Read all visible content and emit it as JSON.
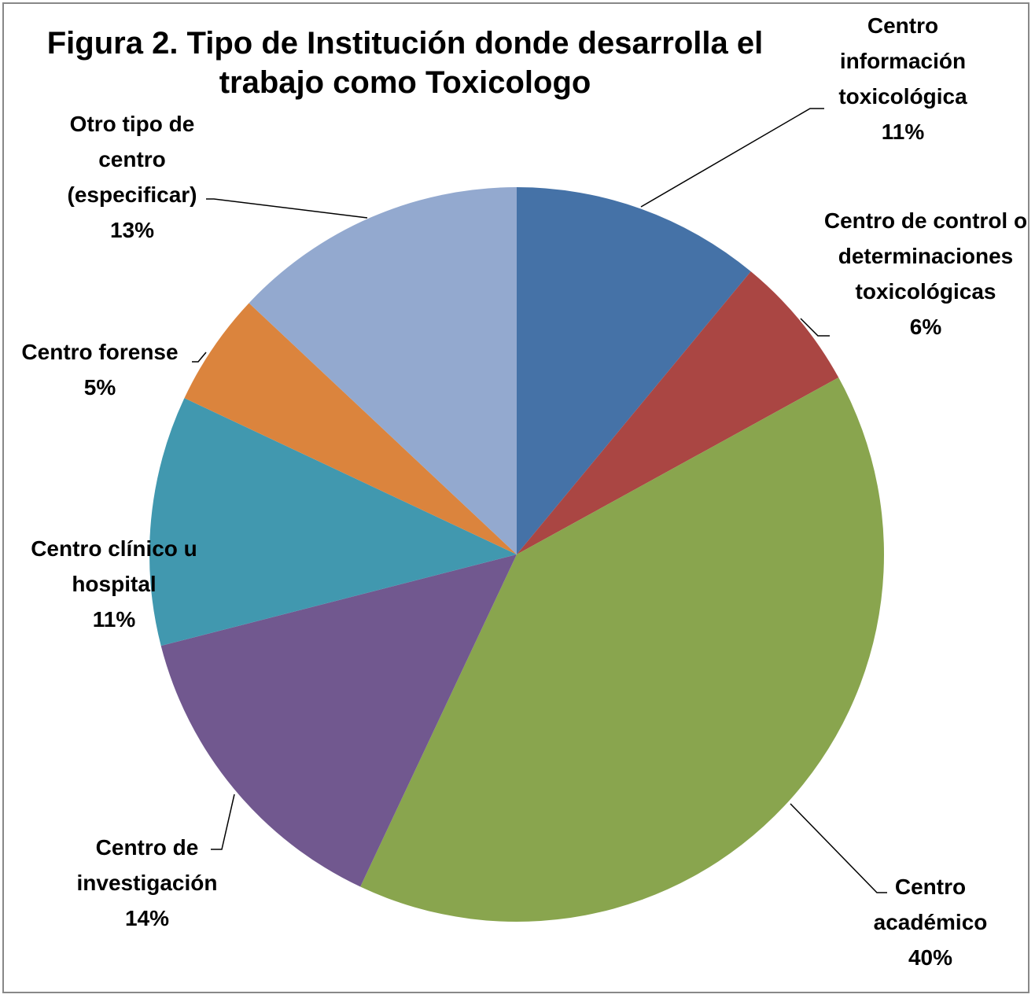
{
  "chart_data": {
    "type": "pie",
    "title": "Figura 2. Tipo de Institución donde desarrolla  el trabajo como Toxicologo",
    "categories": [
      "Centro información toxicológica",
      "Centro de control o determinaciones toxicológicas",
      "Centro académico",
      "Centro de investigación",
      "Centro clínico u hospital",
      "Centro forense",
      "Otro tipo de centro (especificar)"
    ],
    "values": [
      11,
      6,
      40,
      14,
      11,
      5,
      13
    ],
    "value_labels": [
      "11%",
      "6%",
      "40%",
      "14%",
      "11%",
      "5%",
      "13%"
    ],
    "colors": [
      "#4572a7",
      "#aa4643",
      "#89a54e",
      "#71588f",
      "#4198af",
      "#db843d",
      "#93a9cf"
    ]
  }
}
